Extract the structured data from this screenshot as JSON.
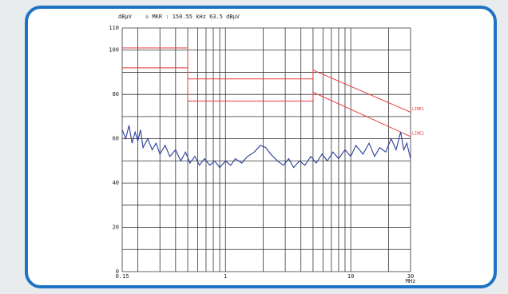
{
  "chart_data": {
    "type": "line",
    "y_unit": "dBµV",
    "header": "◇ MKR : 150.55 kHz 63.5 dBµV",
    "x_unit": "MHz",
    "log_x": true,
    "grid": true,
    "xlim": [
      0.15,
      30
    ],
    "xticks": [
      0.15,
      1,
      10,
      30
    ],
    "x_minor_grid": [
      0.2,
      0.3,
      0.4,
      0.5,
      0.6,
      0.7,
      0.8,
      0.9,
      2,
      3,
      4,
      5,
      6,
      7,
      8,
      9,
      20
    ],
    "ylim": [
      0,
      110
    ],
    "yticks": [
      0,
      20,
      40,
      60,
      80,
      100,
      110
    ],
    "y_minor_grid": [
      10,
      30,
      50,
      70,
      90
    ],
    "series": [
      {
        "name": "LINE1",
        "color": "#e8383d",
        "x": [
          0.15,
          0.5,
          0.5,
          5,
          5,
          30
        ],
        "values": [
          101,
          101,
          87,
          87,
          91,
          72
        ]
      },
      {
        "name": "LINE2",
        "color": "#e8383d",
        "x": [
          0.15,
          0.5,
          0.5,
          5,
          5,
          30
        ],
        "values": [
          92,
          92,
          77,
          77,
          81,
          61
        ]
      },
      {
        "color": "#2a3f9a",
        "x": [
          0.15,
          0.16,
          0.17,
          0.18,
          0.19,
          0.2,
          0.21,
          0.22,
          0.24,
          0.26,
          0.28,
          0.3,
          0.33,
          0.36,
          0.4,
          0.44,
          0.48,
          0.52,
          0.57,
          0.62,
          0.68,
          0.75,
          0.82,
          0.9,
          1.0,
          1.1,
          1.2,
          1.35,
          1.5,
          1.7,
          1.9,
          2.1,
          2.3,
          2.6,
          2.9,
          3.2,
          3.5,
          3.9,
          4.3,
          4.8,
          5.3,
          5.9,
          6.5,
          7.2,
          8,
          9,
          10,
          11,
          12.5,
          14,
          15.5,
          17,
          19,
          21,
          23,
          25,
          26.5,
          28,
          30
        ],
        "values": [
          64,
          60,
          66,
          58,
          63,
          59,
          64,
          56,
          60,
          55,
          58,
          53,
          57,
          52,
          55,
          50,
          54,
          49,
          52,
          48,
          51,
          48,
          50,
          47,
          50,
          48,
          51,
          49,
          52,
          54,
          57,
          56,
          53,
          50,
          48,
          51,
          47,
          50,
          48,
          52,
          49,
          53,
          50,
          54,
          51,
          55,
          52,
          57,
          53,
          58,
          52,
          56,
          54,
          60,
          55,
          63,
          55,
          58,
          51
        ]
      }
    ]
  }
}
